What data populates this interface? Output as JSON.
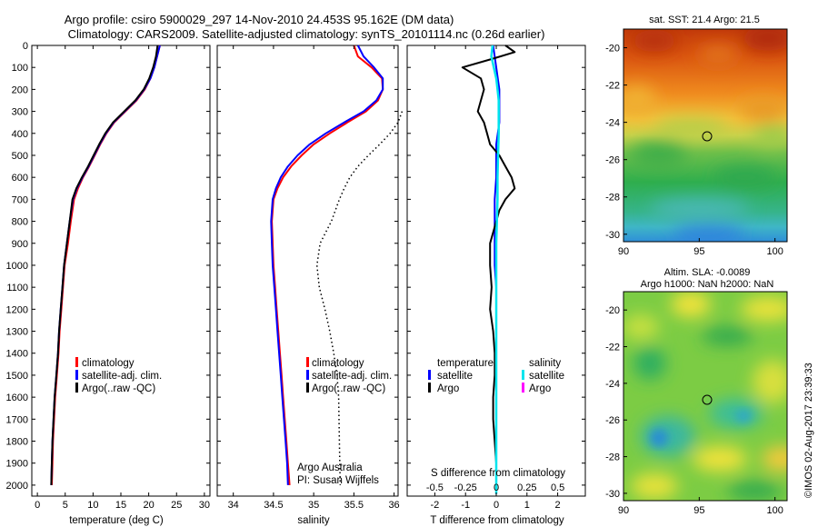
{
  "title_line1": "Argo profile: csiro 5900029_297 14-Nov-2010 24.453S 95.162E (DM data)",
  "title_line2": "Climatology: CARS2009. Satellite-adjusted climatology: synTS_20101114.nc (0.26d earlier)",
  "footer": "©IMOS 02-Aug-2017 23:39:33",
  "credit_line1": "Argo Australia",
  "credit_line2": "PI: Susan Wijffels",
  "map1_title": "sat. SST: 21.4  Argo: 21.5",
  "map2_title_line1": "Altim. SLA: -0.0089",
  "map2_title_line2": "Argo h1000: NaN h2000: NaN",
  "colors": {
    "climatology": "#ff0000",
    "satellite": "#0000ff",
    "argo": "#000000",
    "sal_satellite": "#00e5ee",
    "sal_argo": "#ff00ff"
  },
  "chart_data": [
    {
      "type": "line",
      "name": "temperature",
      "xlabel": "temperature (deg C)",
      "ylabel": "",
      "xlim": [
        -1,
        31
      ],
      "ylim": [
        2050,
        0
      ],
      "xticks": [
        0,
        5,
        10,
        15,
        20,
        25,
        30
      ],
      "yticks": [
        0,
        100,
        200,
        300,
        400,
        500,
        600,
        700,
        800,
        900,
        1000,
        1100,
        1200,
        1300,
        1400,
        1500,
        1600,
        1700,
        1800,
        1900,
        2000
      ],
      "legend_position": "lower-center",
      "series": [
        {
          "name": "climatology",
          "color": "#ff0000",
          "x": [
            22,
            21.5,
            21,
            20.3,
            19.3,
            17.8,
            15.8,
            13.8,
            12.4,
            11.3,
            10.3,
            9.3,
            8.2,
            7.3,
            6.6,
            6,
            5.5,
            4.9,
            4.6,
            4.3,
            4,
            3.8,
            3.5,
            3.2,
            3,
            2.8,
            2.7,
            2.6
          ],
          "y": [
            0,
            50,
            100,
            150,
            200,
            250,
            300,
            350,
            400,
            450,
            500,
            550,
            600,
            650,
            700,
            800,
            900,
            1000,
            1100,
            1200,
            1300,
            1400,
            1500,
            1600,
            1700,
            1800,
            1900,
            2000
          ]
        },
        {
          "name": "satellite-adj. clim.",
          "color": "#0000ff",
          "x": [
            22,
            21.5,
            21,
            20.3,
            19.2,
            17.7,
            15.7,
            13.7,
            12.3,
            11.2,
            10.2,
            9.2,
            8.1,
            7.1,
            6.4,
            5.8,
            5.3,
            4.8,
            4.5,
            4.2,
            3.9,
            3.7,
            3.4,
            3.1,
            2.9,
            2.7,
            2.6,
            2.5
          ],
          "y": [
            0,
            50,
            100,
            150,
            200,
            250,
            300,
            350,
            400,
            450,
            500,
            550,
            600,
            650,
            700,
            800,
            900,
            1000,
            1100,
            1200,
            1300,
            1400,
            1500,
            1600,
            1700,
            1800,
            1900,
            2000
          ]
        },
        {
          "name": "Argo(..raw -QC)",
          "color": "#000000",
          "x": [
            21.6,
            21.3,
            20.8,
            20.1,
            19.1,
            17.6,
            15.6,
            13.6,
            12.2,
            11.1,
            10.1,
            9.1,
            8,
            7,
            6.3,
            5.8,
            5.3,
            4.8,
            4.5,
            4.2,
            3.9,
            3.7,
            3.4,
            3.1,
            2.9,
            2.7,
            2.6,
            2.5
          ],
          "y": [
            0,
            50,
            100,
            150,
            200,
            250,
            300,
            350,
            400,
            450,
            500,
            550,
            600,
            650,
            700,
            800,
            900,
            1000,
            1100,
            1200,
            1300,
            1400,
            1500,
            1600,
            1700,
            1800,
            1900,
            2000
          ]
        }
      ],
      "legend": [
        "climatology",
        "satellite-adj. clim.",
        "Argo(..raw -QC)"
      ]
    },
    {
      "type": "line",
      "name": "salinity",
      "xlabel": "salinity",
      "ylabel": "",
      "xlim": [
        33.8,
        36.05
      ],
      "ylim": [
        2050,
        0
      ],
      "xticks": [
        34,
        34.5,
        35,
        35.5,
        36
      ],
      "legend_position": "lower-center",
      "series": [
        {
          "name": "climatology",
          "color": "#ff0000",
          "x": [
            35.5,
            35.55,
            35.72,
            35.85,
            35.86,
            35.8,
            35.65,
            35.42,
            35.2,
            35,
            34.85,
            34.72,
            34.62,
            34.55,
            34.5,
            34.48,
            34.49,
            34.5,
            34.52,
            34.54,
            34.56,
            34.58,
            34.6,
            34.62,
            34.64,
            34.66,
            34.68,
            34.7
          ],
          "y": [
            0,
            50,
            100,
            150,
            200,
            250,
            300,
            350,
            400,
            450,
            500,
            550,
            600,
            650,
            700,
            800,
            900,
            1000,
            1100,
            1200,
            1300,
            1400,
            1500,
            1600,
            1700,
            1800,
            1900,
            2000
          ]
        },
        {
          "name": "satellite-adj. clim.",
          "color": "#0000ff",
          "x": [
            35.55,
            35.62,
            35.75,
            35.86,
            35.86,
            35.78,
            35.62,
            35.38,
            35.15,
            34.95,
            34.8,
            34.68,
            34.59,
            34.53,
            34.49,
            34.47,
            34.48,
            34.49,
            34.51,
            34.53,
            34.55,
            34.57,
            34.59,
            34.61,
            34.63,
            34.65,
            34.67,
            34.68
          ],
          "y": [
            0,
            50,
            100,
            150,
            200,
            250,
            300,
            350,
            400,
            450,
            500,
            550,
            600,
            650,
            700,
            800,
            900,
            1000,
            1100,
            1200,
            1300,
            1400,
            1500,
            1600,
            1700,
            1800,
            1900,
            2000
          ]
        },
        {
          "name": "Argo(..raw -QC)",
          "color": "#000000",
          "dashed": true,
          "x": [
            36.1,
            36.05,
            35.95,
            35.82,
            35.68,
            35.55,
            35.45,
            35.38,
            35.32,
            35.22,
            35.08,
            35.04,
            35.07,
            35.14,
            35.2,
            35.25,
            35.29,
            35.31,
            35.32,
            35.33
          ],
          "y": [
            300,
            350,
            400,
            450,
            500,
            550,
            600,
            650,
            700,
            800,
            900,
            1000,
            1100,
            1200,
            1300,
            1400,
            1500,
            1600,
            1800,
            2000
          ]
        }
      ],
      "legend": [
        "climatology",
        "satellite-adj. clim.",
        "Argo(..raw -QC)"
      ]
    },
    {
      "type": "line",
      "name": "difference",
      "xlabel": "T difference from climatology",
      "xlabel2": "S difference from climatology",
      "xlim_T": [
        -2.9,
        2.9
      ],
      "xticks_T": [
        -2,
        -1,
        0,
        1,
        2
      ],
      "xlim_S": [
        -0.725,
        0.725
      ],
      "xticks_S": [
        "-0.5",
        "-0.25",
        "0",
        "0.25",
        "0.5"
      ],
      "ylim": [
        2050,
        0
      ],
      "legend_temperature_title": "temperature",
      "legend_salinity_title": "salinity",
      "legend_temperature": [
        "satellite",
        "Argo"
      ],
      "legend_salinity": [
        "satellite",
        "Argo"
      ],
      "series": [
        {
          "name": "T satellite",
          "color": "#0000ff",
          "x": [
            -0.1,
            -0.05,
            0,
            0.05,
            0.1,
            0.1,
            0.1,
            0.1,
            0.05,
            0,
            0,
            0,
            -0.05,
            -0.05,
            -0.05,
            -0.05,
            0,
            0,
            0,
            0,
            0,
            0,
            0,
            0,
            0,
            0,
            0,
            0
          ],
          "y": [
            0,
            50,
            100,
            150,
            200,
            250,
            300,
            350,
            400,
            450,
            500,
            600,
            700,
            800,
            900,
            1000,
            1100,
            1200,
            1300,
            1400,
            1500,
            1600,
            1700,
            1800,
            1900,
            2000,
            2030,
            2040
          ]
        },
        {
          "name": "T Argo",
          "color": "#000000",
          "x": [
            0.3,
            0.6,
            -0.1,
            -1.1,
            -0.5,
            -0.4,
            -0.5,
            -0.6,
            -0.4,
            -0.3,
            -0.2,
            0.1,
            0.3,
            0.5,
            0.6,
            0.3,
            0.1,
            0,
            -0.1,
            -0.2,
            -0.2,
            -0.15,
            -0.2,
            -0.1,
            -0.05,
            -0.05,
            -0.1,
            -0.1,
            -0.05,
            0
          ],
          "y": [
            0,
            30,
            60,
            100,
            150,
            200,
            250,
            300,
            350,
            400,
            450,
            500,
            550,
            600,
            650,
            700,
            750,
            800,
            850,
            900,
            1000,
            1100,
            1200,
            1300,
            1400,
            1500,
            1600,
            1700,
            1800,
            1900
          ]
        },
        {
          "name": "S satellite",
          "color": "#00e5ee",
          "x": [
            -0.03,
            -0.04,
            -0.02,
            0,
            0.01,
            0.02,
            0.02,
            0.02,
            0.015,
            0.01,
            0.01,
            0.005,
            0,
            0,
            0,
            0,
            0,
            0,
            0,
            0,
            0,
            0,
            0
          ],
          "y": [
            0,
            50,
            100,
            150,
            200,
            250,
            300,
            400,
            500,
            600,
            700,
            800,
            900,
            1000,
            1100,
            1200,
            1300,
            1400,
            1500,
            1600,
            1700,
            1800,
            2040
          ]
        }
      ]
    }
  ],
  "map1": {
    "xticks": [
      "90",
      "95",
      "100"
    ],
    "yticks": [
      "-20",
      "-22",
      "-24",
      "-26",
      "-28",
      "-30"
    ]
  },
  "map2": {
    "xticks": [
      "90",
      "95",
      "100"
    ],
    "yticks": [
      "-20",
      "-22",
      "-24",
      "-26",
      "-28",
      "-30"
    ]
  }
}
